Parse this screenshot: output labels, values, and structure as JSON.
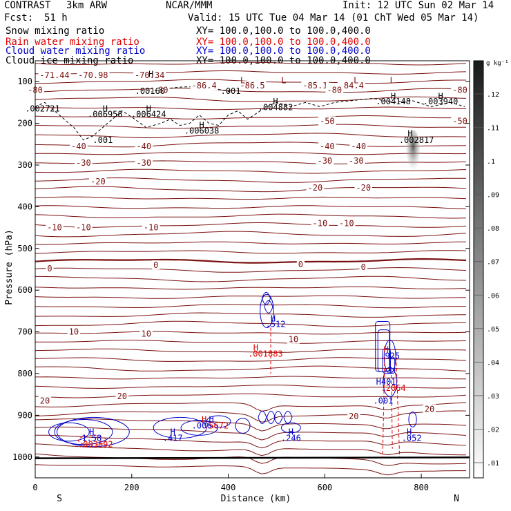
{
  "header": {
    "model": "CONTRAST",
    "resolution": "3km ARW",
    "org": "NCAR/MMM",
    "init": "Init: 12 UTC Sun 02 Mar 14",
    "fcst_label": "Fcst:",
    "fcst_value": "51 h",
    "valid": "Valid: 15 UTC Tue 04 Mar 14 (01 ChT Wed 05 Mar 14)",
    "fields": [
      {
        "name": "Snow mixing ratio",
        "xy": "XY= 100.0,100.0 to 100.0,400.0",
        "color": "#000000"
      },
      {
        "name": "Rain water mixing ratio",
        "xy": "XY= 100.0,100.0 to 100.0,400.0",
        "color": "#e00000"
      },
      {
        "name": "Cloud water mixing ratio",
        "xy": "XY= 100.0,100.0 to 100.0,400.0",
        "color": "#0000c8"
      },
      {
        "name": "Cloud ice mixing ratio",
        "xy": "XY= 100.0,100.0 to 100.0,400.0",
        "color": "#000000"
      }
    ]
  },
  "chart_data": {
    "type": "contour-cross-section",
    "xlabel": "Distance (km)",
    "ylabel": "Pressure (hPa)",
    "xlim": [
      0,
      900
    ],
    "ylim": [
      1050,
      50
    ],
    "x_ticks": [
      0,
      200,
      400,
      600,
      800
    ],
    "y_ticks": [
      100,
      200,
      300,
      400,
      500,
      600,
      700,
      800,
      900,
      1000
    ],
    "x_end_labels": {
      "left": "S",
      "right": "N"
    },
    "colorbar": {
      "unit": "g kg⁻¹",
      "ticks": [
        ".01",
        ".02",
        ".03",
        ".04",
        ".05",
        ".06",
        ".07",
        ".08",
        ".09",
        ".1",
        ".11",
        ".12"
      ]
    },
    "temperature_contour_labels": [
      {
        "text": "-71.44",
        "x": 40,
        "p": 85
      },
      {
        "text": "-70.98",
        "x": 120,
        "p": 85
      },
      {
        "text": "-70.34",
        "x": 237,
        "p": 85
      },
      {
        "text": "-86.4",
        "x": 350,
        "p": 110
      },
      {
        "text": "-86.5",
        "x": 450,
        "p": 110
      },
      {
        "text": "-85.1",
        "x": 580,
        "p": 110
      },
      {
        "text": "-84.4",
        "x": 655,
        "p": 110
      },
      {
        "text": "-80",
        "x": 0,
        "p": 120
      },
      {
        "text": "-80",
        "x": 260,
        "p": 120
      },
      {
        "text": "-80",
        "x": 620,
        "p": 120
      },
      {
        "text": "-80",
        "x": 880,
        "p": 120
      },
      {
        "text": "-50",
        "x": 605,
        "p": 195
      },
      {
        "text": "-50",
        "x": 880,
        "p": 195
      },
      {
        "text": "-40",
        "x": 90,
        "p": 255
      },
      {
        "text": "-40",
        "x": 225,
        "p": 255
      },
      {
        "text": "-40",
        "x": 605,
        "p": 255
      },
      {
        "text": "-40",
        "x": 670,
        "p": 255
      },
      {
        "text": "-30",
        "x": 100,
        "p": 295
      },
      {
        "text": "-30",
        "x": 225,
        "p": 295
      },
      {
        "text": "-30",
        "x": 600,
        "p": 290
      },
      {
        "text": "-30",
        "x": 665,
        "p": 290
      },
      {
        "text": "-20",
        "x": 130,
        "p": 340
      },
      {
        "text": "-20",
        "x": 580,
        "p": 355
      },
      {
        "text": "-20",
        "x": 680,
        "p": 355
      },
      {
        "text": "-10",
        "x": 40,
        "p": 450
      },
      {
        "text": "-10",
        "x": 100,
        "p": 450
      },
      {
        "text": "-10",
        "x": 240,
        "p": 450
      },
      {
        "text": "-10",
        "x": 590,
        "p": 440
      },
      {
        "text": "-10",
        "x": 645,
        "p": 440
      },
      {
        "text": "0",
        "x": 30,
        "p": 548
      },
      {
        "text": "0",
        "x": 250,
        "p": 540
      },
      {
        "text": "0",
        "x": 550,
        "p": 538
      },
      {
        "text": "0",
        "x": 680,
        "p": 545
      },
      {
        "text": "10",
        "x": 80,
        "p": 700
      },
      {
        "text": "10",
        "x": 230,
        "p": 705
      },
      {
        "text": "10",
        "x": 535,
        "p": 718
      },
      {
        "text": "20",
        "x": 20,
        "p": 865
      },
      {
        "text": "20",
        "x": 180,
        "p": 855
      },
      {
        "text": "20",
        "x": 660,
        "p": 903
      },
      {
        "text": "20",
        "x": 817,
        "p": 885
      }
    ],
    "maxima_labels": [
      {
        "text": "H",
        "x": 240,
        "p": 82,
        "color": "#000000"
      },
      {
        "text": ".00160",
        "x": 238,
        "p": 123,
        "color": "#000000"
      },
      {
        "text": ".001",
        "x": 405,
        "p": 123,
        "color": "#000000"
      },
      {
        "text": ".002721",
        "x": 15,
        "p": 165,
        "color": "#000000"
      },
      {
        "text": "H",
        "x": 145,
        "p": 165,
        "color": "#000000"
      },
      {
        "text": ".006958",
        "x": 145,
        "p": 178,
        "color": "#000000"
      },
      {
        "text": "H",
        "x": 235,
        "p": 165,
        "color": "#000000"
      },
      {
        "text": ".006424",
        "x": 235,
        "p": 178,
        "color": "#000000"
      },
      {
        "text": "H",
        "x": 498,
        "p": 148,
        "color": "#000000"
      },
      {
        "text": ".004882",
        "x": 498,
        "p": 162,
        "color": "#000000"
      },
      {
        "text": "H",
        "x": 742,
        "p": 135,
        "color": "#000000"
      },
      {
        "text": ".004148",
        "x": 742,
        "p": 148,
        "color": "#000000"
      },
      {
        "text": "H",
        "x": 840,
        "p": 135,
        "color": "#000000"
      },
      {
        "text": ".003940",
        "x": 840,
        "p": 148,
        "color": "#000000"
      },
      {
        "text": "H",
        "x": 345,
        "p": 205,
        "color": "#000000"
      },
      {
        "text": ".006038",
        "x": 345,
        "p": 218,
        "color": "#000000"
      },
      {
        "text": ".001",
        "x": 140,
        "p": 240,
        "color": "#000000"
      },
      {
        "text": "H",
        "x": 777,
        "p": 225,
        "color": "#000000"
      },
      {
        "text": ".002817",
        "x": 790,
        "p": 240,
        "color": "#000000"
      },
      {
        "text": "L",
        "x": 430,
        "p": 97,
        "color": "#7f1010"
      },
      {
        "text": "L",
        "x": 515,
        "p": 97,
        "color": "#7f1010"
      },
      {
        "text": "L",
        "x": 665,
        "p": 97,
        "color": "#7f1010"
      },
      {
        "text": "L",
        "x": 740,
        "p": 97,
        "color": "#7f1010"
      },
      {
        "text": "H",
        "x": 493,
        "p": 668,
        "color": "#0000c8"
      },
      {
        "text": ".512",
        "x": 498,
        "p": 682,
        "color": "#0000c8"
      },
      {
        "text": "H",
        "x": 457,
        "p": 738,
        "color": "#e00000"
      },
      {
        "text": ".001883",
        "x": 477,
        "p": 753,
        "color": "#e00000"
      },
      {
        "text": "H",
        "x": 727,
        "p": 743,
        "color": "#e00000"
      },
      {
        "text": ".925",
        "x": 735,
        "p": 758,
        "color": "#0000c8"
      },
      {
        "text": "H401",
        "x": 727,
        "p": 820,
        "color": "#0000c8"
      },
      {
        "text": ".2064",
        "x": 742,
        "p": 835,
        "color": "#e00000"
      },
      {
        "text": ".001",
        "x": 721,
        "p": 865,
        "color": "#0000c8"
      },
      {
        "text": "H",
        "x": 117,
        "p": 940,
        "color": "#0000c8"
      },
      {
        "text": "1.58",
        "x": 117,
        "p": 955,
        "color": "#0000c8"
      },
      {
        "text": ".003692",
        "x": 125,
        "p": 970,
        "color": "#e00000"
      },
      {
        "text": "H",
        "x": 285,
        "p": 940,
        "color": "#0000c8"
      },
      {
        "text": ".417",
        "x": 285,
        "p": 955,
        "color": "#0000c8"
      },
      {
        "text": "H",
        "x": 350,
        "p": 910,
        "color": "#e00000"
      },
      {
        "text": "H",
        "x": 365,
        "p": 910,
        "color": "#0000c8"
      },
      {
        "text": ".006",
        "x": 345,
        "p": 925,
        "color": "#0000c8"
      },
      {
        "text": ".5672",
        "x": 375,
        "p": 925,
        "color": "#e00000"
      },
      {
        "text": "H",
        "x": 530,
        "p": 940,
        "color": "#0000c8"
      },
      {
        "text": ".246",
        "x": 530,
        "p": 955,
        "color": "#0000c8"
      },
      {
        "text": "H",
        "x": 775,
        "p": 940,
        "color": "#0000c8"
      },
      {
        "text": ".052",
        "x": 780,
        "p": 955,
        "color": "#0000c8"
      }
    ]
  }
}
